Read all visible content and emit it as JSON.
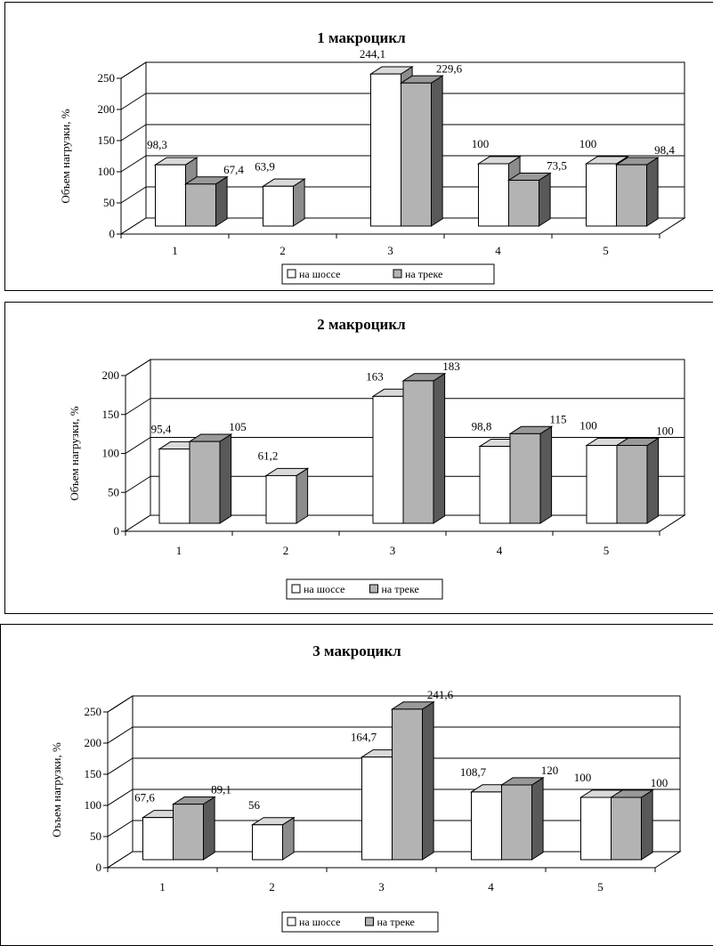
{
  "chart_data": [
    {
      "type": "bar",
      "title": "1 макроцикл",
      "xlabel": "",
      "ylabel": "Объем нагрузки, %",
      "ylim": [
        0,
        250
      ],
      "yticks": [
        "0",
        "50",
        "100",
        "150",
        "200",
        "250"
      ],
      "categories": [
        "1",
        "2",
        "3",
        "4",
        "5"
      ],
      "series": [
        {
          "name": "на шоссе",
          "values": [
            98.3,
            63.9,
            244.1,
            100,
            100
          ],
          "labels": [
            "98,3",
            "63,9",
            "244,1",
            "100",
            "100"
          ]
        },
        {
          "name": "на треке",
          "values": [
            67.4,
            null,
            229.6,
            73.5,
            98.4
          ],
          "labels": [
            "67,4",
            "",
            "229,6",
            "73,5",
            "98,4"
          ]
        }
      ],
      "grid": true,
      "legend": "bottom"
    },
    {
      "type": "bar",
      "title": "2 макроцикл",
      "xlabel": "",
      "ylabel": "Объем нагрузки, %",
      "ylim": [
        0,
        200
      ],
      "yticks": [
        "0",
        "50",
        "100",
        "150",
        "200"
      ],
      "categories": [
        "1",
        "2",
        "3",
        "4",
        "5"
      ],
      "series": [
        {
          "name": "на шоссе",
          "values": [
            95.4,
            61.2,
            163,
            98.8,
            100
          ],
          "labels": [
            "95,4",
            "61,2",
            "163",
            "98,8",
            "100"
          ]
        },
        {
          "name": "на треке",
          "values": [
            105,
            null,
            183,
            115,
            100
          ],
          "labels": [
            "105",
            "",
            "183",
            "115",
            "100"
          ]
        }
      ],
      "grid": true,
      "legend": "bottom"
    },
    {
      "type": "bar",
      "title": "3 макроцикл",
      "xlabel": "",
      "ylabel": "Оъъем нагрузки, %",
      "ylim": [
        0,
        250
      ],
      "yticks": [
        "0",
        "50",
        "100",
        "150",
        "200",
        "250"
      ],
      "categories": [
        "1",
        "2",
        "3",
        "4",
        "5"
      ],
      "series": [
        {
          "name": "на шоссе",
          "values": [
            67.6,
            56,
            164.7,
            108.7,
            100
          ],
          "labels": [
            "67,6",
            "56",
            "164,7",
            "108,7",
            "100"
          ]
        },
        {
          "name": "на треке",
          "values": [
            89.1,
            null,
            241.6,
            120,
            100
          ],
          "labels": [
            "89,1",
            "",
            "241,6",
            "120",
            "100"
          ]
        }
      ],
      "grid": true,
      "legend": "bottom"
    }
  ],
  "colors": {
    "series1_front": "#ffffff",
    "series1_top": "#d9d9d9",
    "series1_side": "#8c8c8c",
    "series2_front": "#b3b3b3",
    "series2_top": "#999999",
    "series2_side": "#595959",
    "line": "#000000"
  }
}
